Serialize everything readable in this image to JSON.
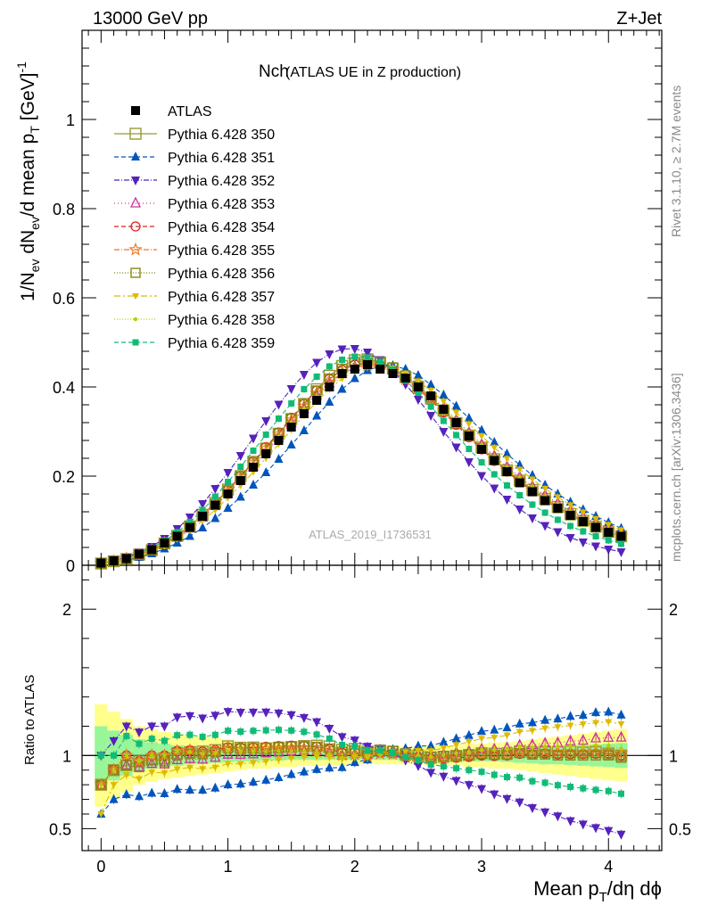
{
  "header": {
    "energy_label": "13000 GeV pp",
    "process_label": "Z+Jet",
    "title_main": "Nch",
    "title_sub": "(ATLAS UE in Z production)",
    "watermark": "ATLAS_2019_I1736531",
    "side_top": "Rivet 3.1.10, ≥ 2.7M events",
    "side_bottom": "mcplots.cern.ch [arXiv:1306.3436]"
  },
  "axes": {
    "ylabel_main": "1/N_ev dN_ev/d mean p_T [GeV]^-1",
    "ylabel_ratio": "Ratio to ATLAS",
    "xlabel": "Mean p_T/dη dϕ"
  },
  "chart_data": [
    {
      "type": "line",
      "panel": "main",
      "xlim": [
        -0.15,
        4.42
      ],
      "ylim": [
        0,
        1.2
      ],
      "xticks": [
        "0",
        "1",
        "2",
        "3",
        "4"
      ],
      "yticks": [
        "0",
        "0.2",
        "0.4",
        "0.6",
        "0.8",
        "1"
      ],
      "x": [
        0.0,
        0.1,
        0.2,
        0.3,
        0.4,
        0.5,
        0.6,
        0.7,
        0.8,
        0.9,
        1.0,
        1.1,
        1.2,
        1.3,
        1.4,
        1.5,
        1.6,
        1.7,
        1.8,
        1.9,
        2.0,
        2.1,
        2.2,
        2.3,
        2.4,
        2.5,
        2.6,
        2.7,
        2.8,
        2.9,
        3.0,
        3.1,
        3.2,
        3.3,
        3.4,
        3.5,
        3.6,
        3.7,
        3.8,
        3.9,
        4.0,
        4.1
      ],
      "series": [
        {
          "name": "ATLAS",
          "color": "#000000",
          "marker": "square",
          "dash": "",
          "values": [
            0.005,
            0.01,
            0.015,
            0.025,
            0.035,
            0.05,
            0.065,
            0.085,
            0.11,
            0.135,
            0.16,
            0.19,
            0.22,
            0.25,
            0.28,
            0.31,
            0.34,
            0.37,
            0.4,
            0.43,
            0.44,
            0.45,
            0.44,
            0.43,
            0.42,
            0.4,
            0.38,
            0.35,
            0.32,
            0.29,
            0.26,
            0.235,
            0.21,
            0.185,
            0.165,
            0.145,
            0.128,
            0.112,
            0.098,
            0.085,
            0.074,
            0.065
          ]
        },
        {
          "name": "Pythia 6.428 350",
          "color": "#999933",
          "marker": "open-square",
          "dash": "",
          "values": [
            0.004,
            0.009,
            0.014,
            0.024,
            0.034,
            0.049,
            0.066,
            0.087,
            0.113,
            0.14,
            0.17,
            0.2,
            0.232,
            0.262,
            0.295,
            0.328,
            0.362,
            0.395,
            0.425,
            0.447,
            0.46,
            0.462,
            0.455,
            0.441,
            0.422,
            0.399,
            0.374,
            0.347,
            0.319,
            0.291,
            0.264,
            0.238,
            0.213,
            0.19,
            0.169,
            0.149,
            0.131,
            0.115,
            0.1,
            0.087,
            0.075,
            0.065
          ]
        },
        {
          "name": "Pythia 6.428 351",
          "color": "#0055bb",
          "marker": "tri-up",
          "dash": "5,3",
          "values": [
            0.003,
            0.007,
            0.011,
            0.018,
            0.026,
            0.037,
            0.05,
            0.065,
            0.084,
            0.105,
            0.128,
            0.153,
            0.18,
            0.208,
            0.238,
            0.27,
            0.302,
            0.335,
            0.366,
            0.395,
            0.419,
            0.437,
            0.447,
            0.448,
            0.44,
            0.426,
            0.405,
            0.382,
            0.357,
            0.33,
            0.303,
            0.276,
            0.25,
            0.225,
            0.202,
            0.18,
            0.16,
            0.142,
            0.125,
            0.11,
            0.096,
            0.083
          ]
        },
        {
          "name": "Pythia 6.428 352",
          "color": "#5522bb",
          "marker": "tri-down",
          "dash": "6,2,1,2",
          "values": [
            0.005,
            0.011,
            0.018,
            0.029,
            0.042,
            0.06,
            0.082,
            0.108,
            0.138,
            0.172,
            0.208,
            0.246,
            0.285,
            0.324,
            0.361,
            0.396,
            0.428,
            0.455,
            0.474,
            0.485,
            0.486,
            0.478,
            0.461,
            0.436,
            0.406,
            0.372,
            0.336,
            0.3,
            0.265,
            0.232,
            0.201,
            0.173,
            0.148,
            0.126,
            0.106,
            0.089,
            0.075,
            0.062,
            0.052,
            0.043,
            0.036,
            0.03
          ]
        },
        {
          "name": "Pythia 6.428 353",
          "color": "#cc3399",
          "marker": "open-tri",
          "dash": "1,3",
          "values": [
            0.004,
            0.009,
            0.014,
            0.023,
            0.033,
            0.047,
            0.063,
            0.083,
            0.107,
            0.133,
            0.161,
            0.191,
            0.222,
            0.254,
            0.286,
            0.319,
            0.351,
            0.381,
            0.408,
            0.43,
            0.445,
            0.452,
            0.45,
            0.44,
            0.424,
            0.403,
            0.379,
            0.353,
            0.326,
            0.298,
            0.271,
            0.245,
            0.221,
            0.198,
            0.177,
            0.157,
            0.139,
            0.123,
            0.108,
            0.095,
            0.083,
            0.073
          ]
        },
        {
          "name": "Pythia 6.428 354",
          "color": "#dd2222",
          "marker": "open-circle",
          "dash": "5,3",
          "values": [
            0.004,
            0.009,
            0.015,
            0.024,
            0.035,
            0.05,
            0.067,
            0.088,
            0.113,
            0.14,
            0.169,
            0.2,
            0.232,
            0.265,
            0.298,
            0.331,
            0.362,
            0.392,
            0.418,
            0.438,
            0.45,
            0.454,
            0.449,
            0.436,
            0.418,
            0.395,
            0.37,
            0.343,
            0.315,
            0.287,
            0.26,
            0.234,
            0.21,
            0.187,
            0.166,
            0.147,
            0.129,
            0.113,
            0.099,
            0.086,
            0.075,
            0.065
          ]
        },
        {
          "name": "Pythia 6.428 355",
          "color": "#ee7722",
          "marker": "open-star",
          "dash": "6,2,1,2",
          "values": [
            0.004,
            0.009,
            0.015,
            0.024,
            0.035,
            0.05,
            0.067,
            0.088,
            0.112,
            0.139,
            0.168,
            0.198,
            0.23,
            0.262,
            0.294,
            0.326,
            0.357,
            0.386,
            0.411,
            0.431,
            0.443,
            0.448,
            0.445,
            0.434,
            0.417,
            0.396,
            0.372,
            0.346,
            0.319,
            0.291,
            0.264,
            0.238,
            0.213,
            0.19,
            0.169,
            0.149,
            0.131,
            0.115,
            0.1,
            0.087,
            0.076,
            0.066
          ]
        },
        {
          "name": "Pythia 6.428 356",
          "color": "#888811",
          "marker": "open-square-small",
          "dash": "1,2",
          "values": [
            0.004,
            0.009,
            0.014,
            0.023,
            0.034,
            0.048,
            0.065,
            0.086,
            0.111,
            0.138,
            0.168,
            0.199,
            0.231,
            0.263,
            0.296,
            0.329,
            0.361,
            0.392,
            0.419,
            0.441,
            0.455,
            0.46,
            0.456,
            0.444,
            0.426,
            0.403,
            0.377,
            0.349,
            0.32,
            0.291,
            0.263,
            0.236,
            0.211,
            0.188,
            0.166,
            0.146,
            0.128,
            0.112,
            0.098,
            0.085,
            0.074,
            0.064
          ]
        },
        {
          "name": "Pythia 6.428 357",
          "color": "#ddbb00",
          "marker": "dash-tri",
          "dash": "7,3,2,3",
          "values": [
            0.003,
            0.008,
            0.013,
            0.021,
            0.031,
            0.044,
            0.059,
            0.078,
            0.1,
            0.124,
            0.151,
            0.179,
            0.209,
            0.24,
            0.272,
            0.304,
            0.336,
            0.367,
            0.395,
            0.419,
            0.436,
            0.446,
            0.448,
            0.442,
            0.43,
            0.413,
            0.392,
            0.368,
            0.343,
            0.317,
            0.29,
            0.264,
            0.239,
            0.215,
            0.193,
            0.172,
            0.153,
            0.135,
            0.119,
            0.104,
            0.091,
            0.079
          ]
        },
        {
          "name": "Pythia 6.428 358",
          "color": "#bbcc00",
          "marker": "dot",
          "dash": "1,2",
          "values": [
            0.004,
            0.009,
            0.015,
            0.024,
            0.035,
            0.05,
            0.067,
            0.087,
            0.111,
            0.137,
            0.165,
            0.195,
            0.226,
            0.257,
            0.289,
            0.32,
            0.35,
            0.378,
            0.403,
            0.423,
            0.437,
            0.443,
            0.442,
            0.434,
            0.42,
            0.4,
            0.377,
            0.352,
            0.325,
            0.297,
            0.27,
            0.244,
            0.219,
            0.196,
            0.174,
            0.154,
            0.136,
            0.119,
            0.104,
            0.091,
            0.079,
            0.068
          ]
        },
        {
          "name": "Pythia 6.428 359",
          "color": "#11bb77",
          "marker": "square-small",
          "dash": "5,3",
          "values": [
            0.005,
            0.01,
            0.017,
            0.027,
            0.039,
            0.055,
            0.074,
            0.097,
            0.124,
            0.154,
            0.187,
            0.221,
            0.257,
            0.293,
            0.329,
            0.363,
            0.395,
            0.423,
            0.446,
            0.461,
            0.468,
            0.466,
            0.456,
            0.439,
            0.415,
            0.387,
            0.356,
            0.324,
            0.292,
            0.261,
            0.231,
            0.204,
            0.179,
            0.157,
            0.136,
            0.118,
            0.102,
            0.088,
            0.076,
            0.065,
            0.056,
            0.048
          ]
        }
      ]
    },
    {
      "type": "line",
      "panel": "ratio",
      "xlim": [
        -0.15,
        4.42
      ],
      "ylim": [
        0.35,
        2.3
      ],
      "yticks": [
        "0.5",
        "1",
        "2"
      ],
      "reference": 1,
      "band_yellow_half_width": [
        0.35,
        0.3,
        0.25,
        0.2,
        0.18,
        0.16,
        0.15,
        0.14,
        0.13,
        0.12,
        0.11,
        0.1,
        0.09,
        0.09,
        0.08,
        0.08,
        0.07,
        0.07,
        0.07,
        0.07,
        0.06,
        0.06,
        0.06,
        0.06,
        0.06,
        0.06,
        0.07,
        0.07,
        0.07,
        0.08,
        0.08,
        0.09,
        0.09,
        0.1,
        0.11,
        0.12,
        0.13,
        0.14,
        0.15,
        0.16,
        0.17,
        0.18
      ],
      "band_green_half_width": [
        0.2,
        0.17,
        0.14,
        0.11,
        0.09,
        0.08,
        0.07,
        0.06,
        0.055,
        0.05,
        0.045,
        0.04,
        0.04,
        0.035,
        0.035,
        0.03,
        0.03,
        0.03,
        0.03,
        0.03,
        0.03,
        0.03,
        0.03,
        0.03,
        0.03,
        0.03,
        0.03,
        0.03,
        0.035,
        0.035,
        0.04,
        0.04,
        0.045,
        0.05,
        0.055,
        0.06,
        0.06,
        0.065,
        0.07,
        0.075,
        0.08,
        0.085
      ]
    }
  ]
}
